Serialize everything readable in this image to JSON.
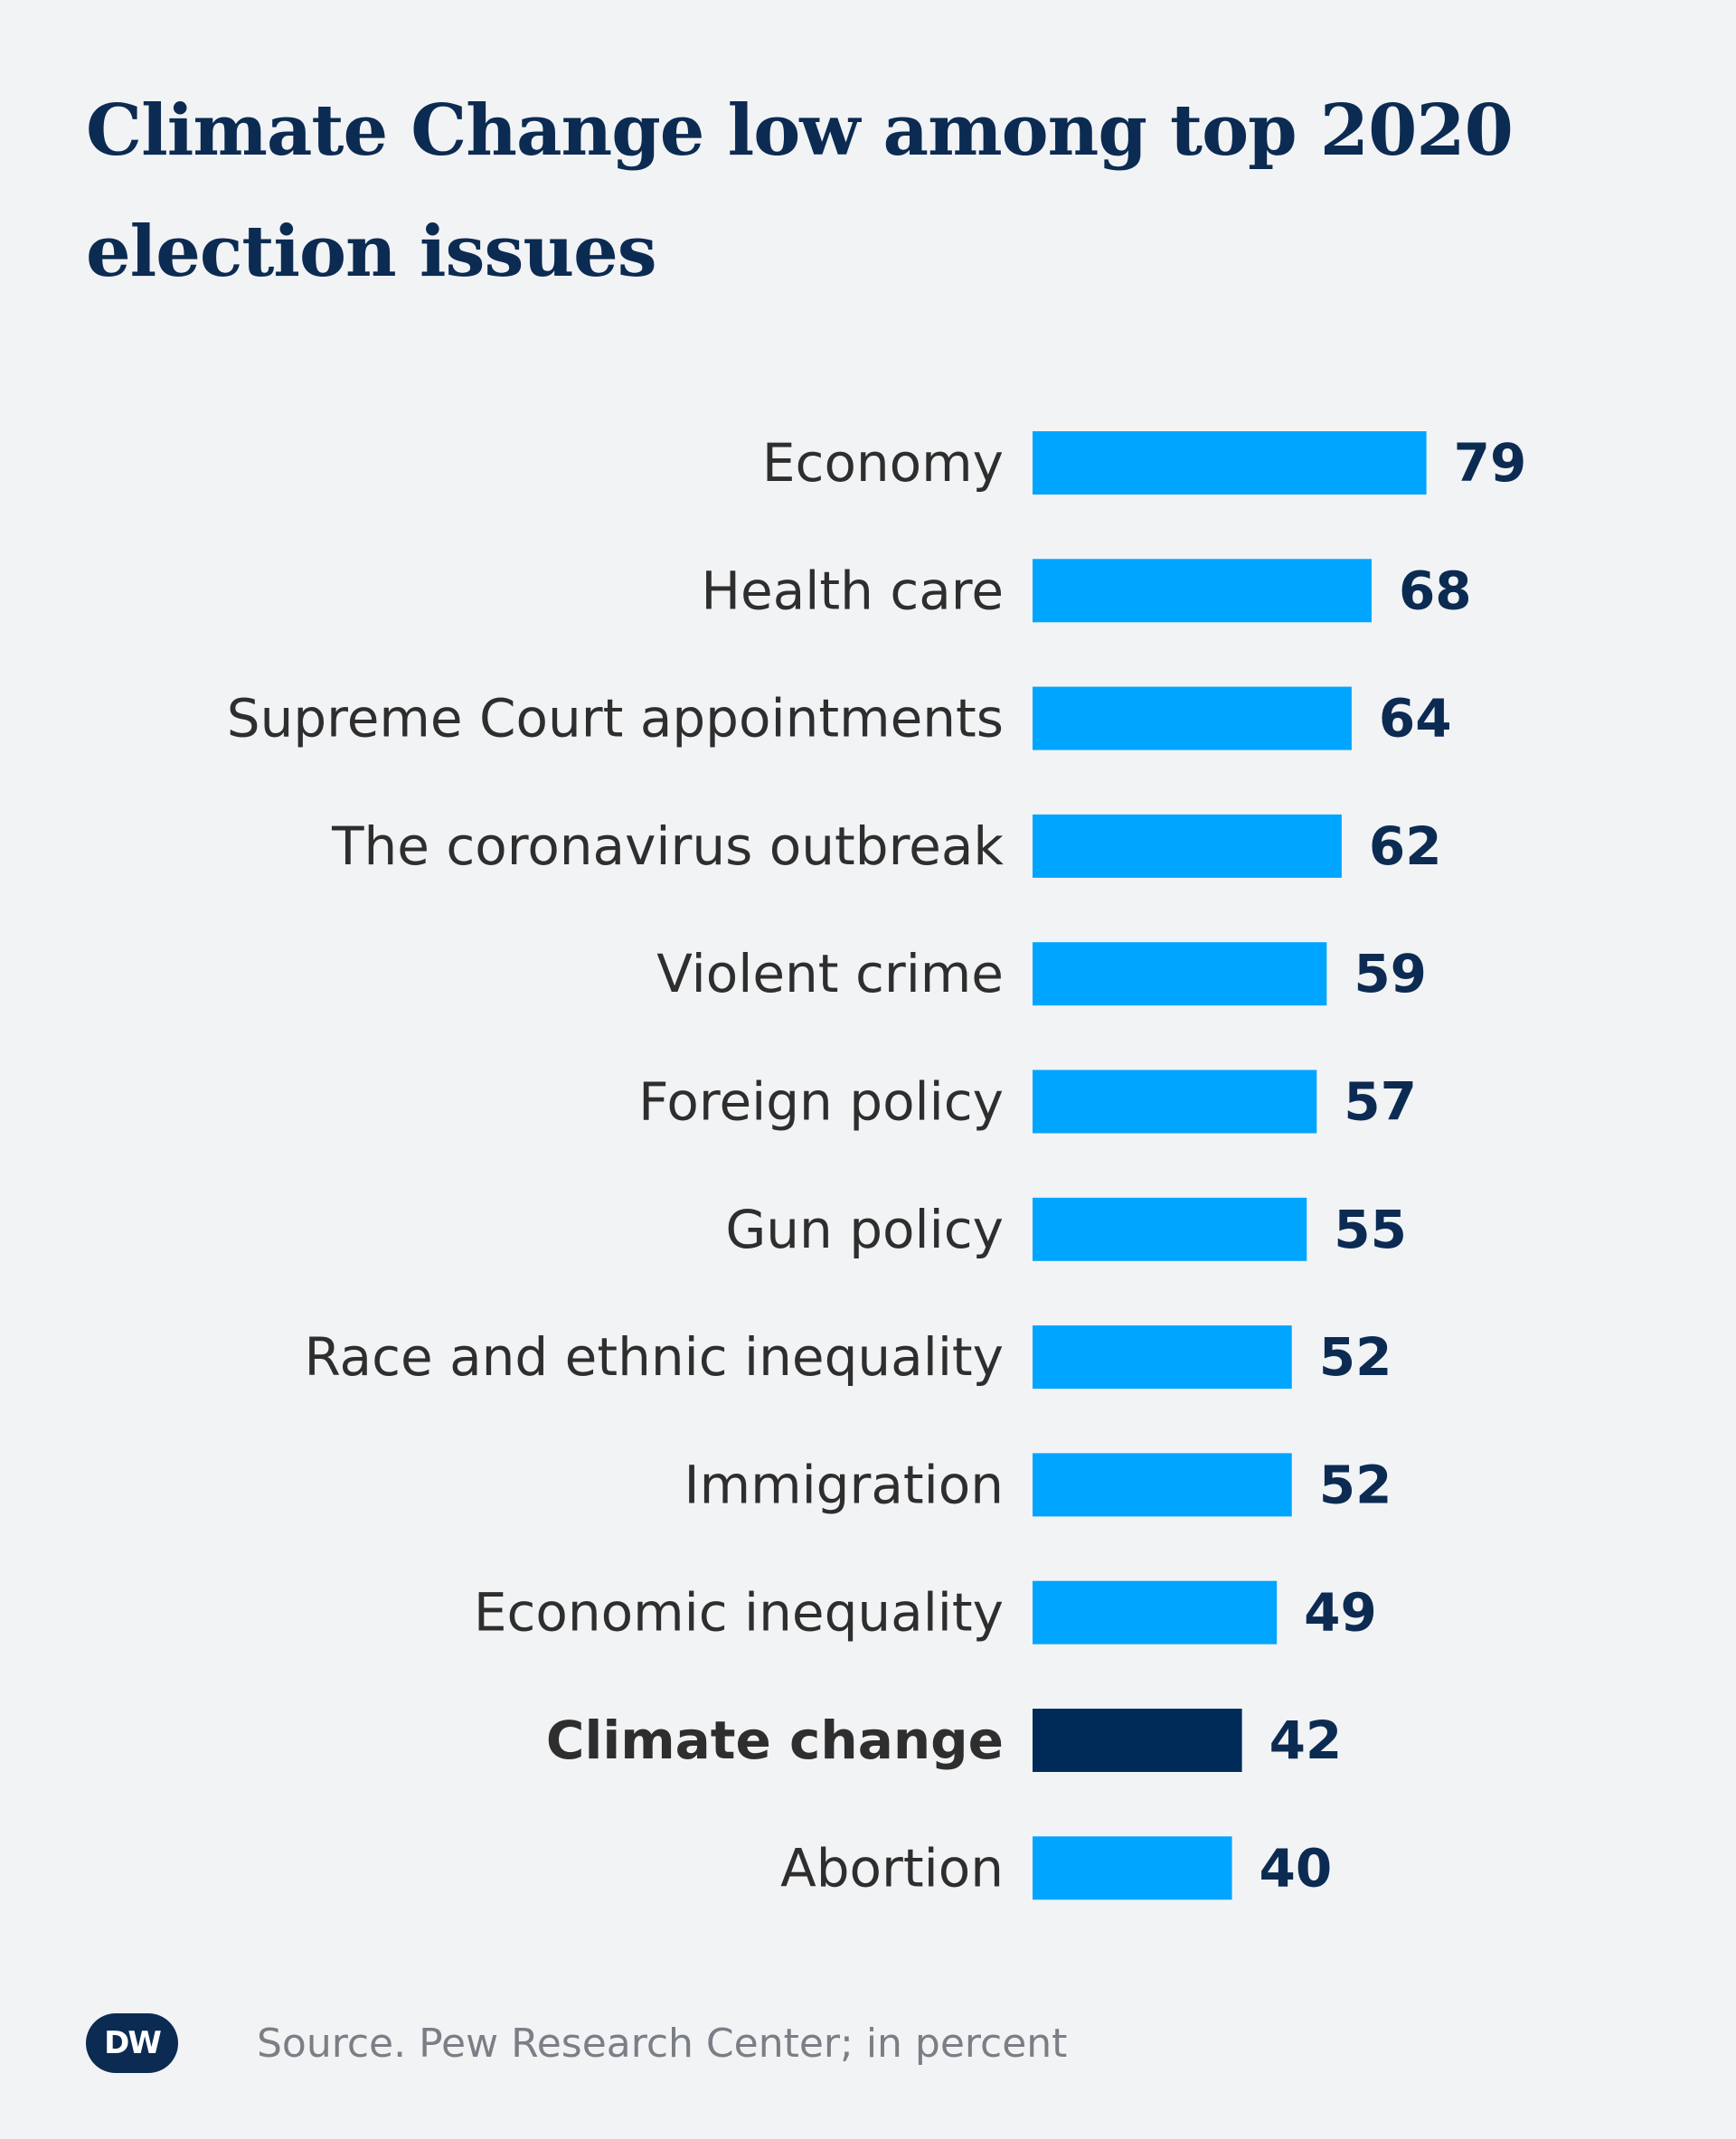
{
  "title": "Climate Change low among top 2020 election issues",
  "source": "Source. Pew Research Center; in percent",
  "logo": "DW",
  "colors": {
    "background": "#f2f3f5",
    "bar": "#00a5ff",
    "highlight_bar": "#002a57",
    "value_text": "#0c2b52",
    "label_text": "#2e2e2e"
  },
  "chart_data": {
    "type": "bar",
    "orientation": "horizontal",
    "categories": [
      "Economy",
      "Health care",
      "Supreme Court appointments",
      "The coronavirus outbreak",
      "Violent crime",
      "Foreign policy",
      "Gun policy",
      "Race and ethnic inequality",
      "Immigration",
      "Economic inequality",
      "Climate change",
      "Abortion"
    ],
    "values": [
      79,
      68,
      64,
      62,
      59,
      57,
      55,
      52,
      52,
      49,
      42,
      40
    ],
    "highlight": "Climate change",
    "unit": "percent",
    "grid": false,
    "legend": false,
    "title": "Climate Change low among top 2020 election issues"
  }
}
